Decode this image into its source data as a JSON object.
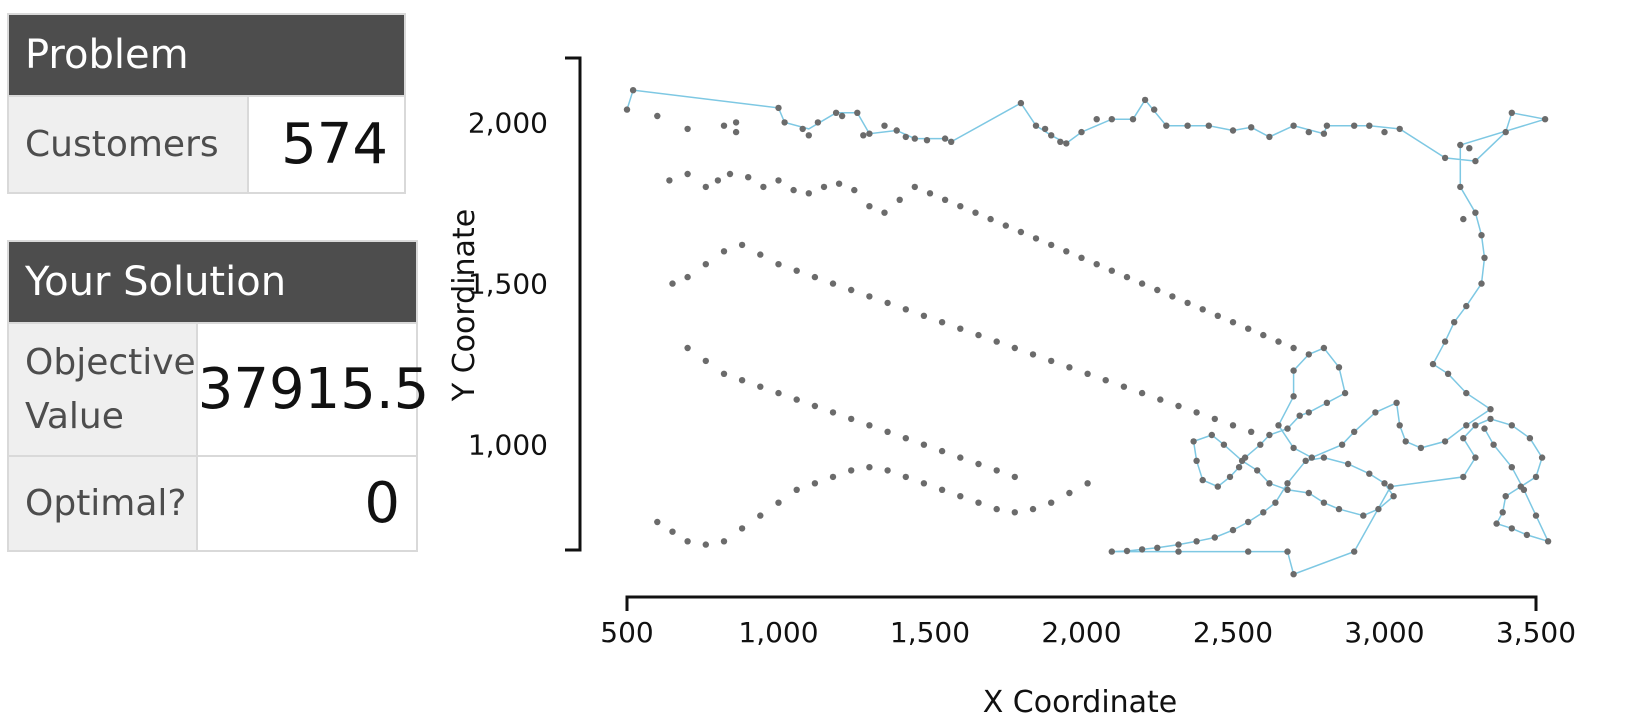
{
  "problem": {
    "title": "Problem",
    "customers_label": "Customers",
    "customers_value": "574"
  },
  "solution": {
    "title": "Your Solution",
    "objective_label": "Objective Value",
    "objective_value": "37915.5",
    "optimal_label": "Optimal?",
    "optimal_value": "0"
  },
  "colors": {
    "header_bg": "#4d4d4d",
    "label_bg": "#efefef",
    "route_line": "#7ec8e3",
    "point": "#6b6b6b"
  },
  "chart_data": {
    "type": "line",
    "xlabel": "X Coordinate",
    "ylabel": "Y Coordinate",
    "xlim": [
      500,
      3500
    ],
    "ylim": [
      580,
      2200
    ],
    "x_ticks": [
      500,
      1000,
      1500,
      2000,
      2500,
      3000,
      3500
    ],
    "x_tick_labels": [
      "500",
      "1,000",
      "1,500",
      "2,000",
      "2,500",
      "3,000",
      "3,500"
    ],
    "y_ticks": [
      1000,
      1500,
      2000
    ],
    "y_tick_labels": [
      "1,000",
      "1,500",
      "2,000"
    ],
    "grid": false,
    "route": [
      [
        500,
        2040
      ],
      [
        520,
        2100
      ],
      [
        1000,
        2045
      ],
      [
        1020,
        2000
      ],
      [
        1100,
        1980
      ],
      [
        1190,
        2030
      ],
      [
        1260,
        2030
      ],
      [
        1300,
        1965
      ],
      [
        1390,
        1975
      ],
      [
        1450,
        1950
      ],
      [
        1550,
        1950
      ],
      [
        1570,
        1940
      ],
      [
        1800,
        2060
      ],
      [
        1850,
        1990
      ],
      [
        1900,
        1960
      ],
      [
        1950,
        1935
      ],
      [
        2000,
        1970
      ],
      [
        2100,
        2010
      ],
      [
        2170,
        2010
      ],
      [
        2210,
        2070
      ],
      [
        2280,
        1990
      ],
      [
        2420,
        1990
      ],
      [
        2500,
        1975
      ],
      [
        2560,
        1985
      ],
      [
        2620,
        1955
      ],
      [
        2700,
        1990
      ],
      [
        2800,
        1965
      ],
      [
        2810,
        1990
      ],
      [
        2950,
        1990
      ],
      [
        3050,
        1980
      ],
      [
        3200,
        1890
      ],
      [
        3300,
        1880
      ],
      [
        3400,
        1970
      ],
      [
        3420,
        2030
      ],
      [
        3530,
        2010
      ],
      [
        3250,
        1930
      ],
      [
        3250,
        1800
      ],
      [
        3300,
        1720
      ],
      [
        3320,
        1650
      ],
      [
        3330,
        1580
      ],
      [
        3320,
        1500
      ],
      [
        3270,
        1430
      ],
      [
        3230,
        1380
      ],
      [
        3200,
        1320
      ],
      [
        3160,
        1250
      ],
      [
        3210,
        1220
      ],
      [
        3270,
        1160
      ],
      [
        3350,
        1110
      ],
      [
        3270,
        1060
      ],
      [
        3200,
        1010
      ],
      [
        3120,
        990
      ],
      [
        3070,
        1010
      ],
      [
        3050,
        1060
      ],
      [
        3040,
        1130
      ],
      [
        2970,
        1100
      ],
      [
        2900,
        1040
      ],
      [
        2860,
        1000
      ],
      [
        2760,
        960
      ],
      [
        2700,
        990
      ],
      [
        2650,
        1060
      ],
      [
        2700,
        1150
      ],
      [
        2700,
        1230
      ],
      [
        2750,
        1280
      ],
      [
        2800,
        1300
      ],
      [
        2850,
        1240
      ],
      [
        2870,
        1160
      ],
      [
        2810,
        1130
      ],
      [
        2750,
        1100
      ],
      [
        2720,
        1090
      ],
      [
        2680,
        1050
      ],
      [
        2620,
        1030
      ],
      [
        2590,
        1000
      ],
      [
        2540,
        960
      ],
      [
        2520,
        930
      ],
      [
        2490,
        900
      ],
      [
        2450,
        870
      ],
      [
        2400,
        890
      ],
      [
        2380,
        950
      ],
      [
        2370,
        1010
      ],
      [
        2430,
        1030
      ],
      [
        2470,
        1000
      ],
      [
        2530,
        950
      ],
      [
        2580,
        920
      ],
      [
        2620,
        880
      ],
      [
        2680,
        860
      ],
      [
        2750,
        850
      ],
      [
        2800,
        820
      ],
      [
        2850,
        800
      ],
      [
        2930,
        780
      ],
      [
        2980,
        800
      ],
      [
        3030,
        840
      ],
      [
        3000,
        880
      ],
      [
        2950,
        910
      ],
      [
        2880,
        940
      ],
      [
        2800,
        960
      ],
      [
        2740,
        950
      ],
      [
        2680,
        880
      ],
      [
        2640,
        820
      ],
      [
        2600,
        790
      ],
      [
        2550,
        760
      ],
      [
        2500,
        735
      ],
      [
        2440,
        712
      ],
      [
        2380,
        700
      ],
      [
        2320,
        690
      ],
      [
        2250,
        680
      ],
      [
        2200,
        675
      ],
      [
        2150,
        670
      ],
      [
        2100,
        668
      ],
      [
        2320,
        668
      ],
      [
        2550,
        668
      ],
      [
        2680,
        668
      ],
      [
        2700,
        598
      ],
      [
        2900,
        668
      ],
      [
        3020,
        870
      ],
      [
        3260,
        900
      ],
      [
        3300,
        960
      ],
      [
        3260,
        1020
      ],
      [
        3300,
        1060
      ],
      [
        3350,
        1080
      ],
      [
        3420,
        1060
      ],
      [
        3480,
        1020
      ],
      [
        3520,
        960
      ],
      [
        3500,
        900
      ],
      [
        3450,
        870
      ],
      [
        3400,
        840
      ],
      [
        3390,
        790
      ],
      [
        3370,
        755
      ],
      [
        3420,
        740
      ],
      [
        3470,
        720
      ],
      [
        3540,
        700
      ],
      [
        3500,
        780
      ],
      [
        3460,
        860
      ],
      [
        3420,
        930
      ],
      [
        3360,
        1000
      ],
      [
        3330,
        1050
      ]
    ],
    "points": [
      [
        500,
        2040
      ],
      [
        520,
        2100
      ],
      [
        600,
        2020
      ],
      [
        700,
        1980
      ],
      [
        820,
        1990
      ],
      [
        860,
        1970
      ],
      [
        860,
        2000
      ],
      [
        1000,
        2045
      ],
      [
        1020,
        2000
      ],
      [
        1080,
        1980
      ],
      [
        1100,
        1960
      ],
      [
        1130,
        2000
      ],
      [
        1190,
        2030
      ],
      [
        1210,
        2020
      ],
      [
        1260,
        2030
      ],
      [
        1280,
        1960
      ],
      [
        1300,
        1965
      ],
      [
        1350,
        1990
      ],
      [
        1390,
        1975
      ],
      [
        1420,
        1955
      ],
      [
        1450,
        1950
      ],
      [
        1490,
        1945
      ],
      [
        1550,
        1950
      ],
      [
        1570,
        1940
      ],
      [
        1800,
        2060
      ],
      [
        1850,
        1990
      ],
      [
        1880,
        1980
      ],
      [
        1900,
        1960
      ],
      [
        1930,
        1940
      ],
      [
        1950,
        1935
      ],
      [
        2000,
        1970
      ],
      [
        2050,
        2010
      ],
      [
        2100,
        2010
      ],
      [
        2170,
        2010
      ],
      [
        2210,
        2070
      ],
      [
        2240,
        2040
      ],
      [
        2280,
        1990
      ],
      [
        2350,
        1990
      ],
      [
        2420,
        1990
      ],
      [
        2500,
        1975
      ],
      [
        2560,
        1985
      ],
      [
        2620,
        1955
      ],
      [
        2700,
        1990
      ],
      [
        2750,
        1970
      ],
      [
        2800,
        1965
      ],
      [
        2810,
        1990
      ],
      [
        2900,
        1990
      ],
      [
        2950,
        1990
      ],
      [
        3000,
        1970
      ],
      [
        3050,
        1980
      ],
      [
        3200,
        1890
      ],
      [
        3250,
        1930
      ],
      [
        3280,
        1920
      ],
      [
        3300,
        1880
      ],
      [
        3400,
        1970
      ],
      [
        3420,
        2030
      ],
      [
        3530,
        2010
      ],
      [
        3250,
        1800
      ],
      [
        3260,
        1700
      ],
      [
        3300,
        1720
      ],
      [
        3320,
        1650
      ],
      [
        3330,
        1580
      ],
      [
        3320,
        1500
      ],
      [
        3270,
        1430
      ],
      [
        3230,
        1380
      ],
      [
        3200,
        1320
      ],
      [
        3160,
        1250
      ],
      [
        3210,
        1220
      ],
      [
        3270,
        1160
      ],
      [
        3350,
        1110
      ],
      [
        3270,
        1060
      ],
      [
        3200,
        1010
      ],
      [
        3120,
        990
      ],
      [
        3070,
        1010
      ],
      [
        3050,
        1060
      ],
      [
        3040,
        1130
      ],
      [
        2970,
        1100
      ],
      [
        2900,
        1040
      ],
      [
        2860,
        1000
      ],
      [
        2760,
        960
      ],
      [
        2700,
        990
      ],
      [
        2650,
        1060
      ],
      [
        2700,
        1150
      ],
      [
        2700,
        1230
      ],
      [
        2750,
        1280
      ],
      [
        2800,
        1300
      ],
      [
        2850,
        1240
      ],
      [
        2870,
        1160
      ],
      [
        2810,
        1130
      ],
      [
        2750,
        1100
      ],
      [
        2720,
        1090
      ],
      [
        2680,
        1050
      ],
      [
        2620,
        1030
      ],
      [
        2590,
        1000
      ],
      [
        2540,
        960
      ],
      [
        2520,
        930
      ],
      [
        2490,
        900
      ],
      [
        2450,
        870
      ],
      [
        2400,
        890
      ],
      [
        2380,
        950
      ],
      [
        2370,
        1010
      ],
      [
        2430,
        1030
      ],
      [
        2470,
        1000
      ],
      [
        2530,
        950
      ],
      [
        2580,
        920
      ],
      [
        2620,
        880
      ],
      [
        2680,
        860
      ],
      [
        2750,
        850
      ],
      [
        2800,
        820
      ],
      [
        2850,
        800
      ],
      [
        2930,
        780
      ],
      [
        2980,
        800
      ],
      [
        3030,
        840
      ],
      [
        3000,
        880
      ],
      [
        2950,
        910
      ],
      [
        2880,
        940
      ],
      [
        2800,
        960
      ],
      [
        2740,
        950
      ],
      [
        2680,
        880
      ],
      [
        2640,
        820
      ],
      [
        2600,
        790
      ],
      [
        2550,
        760
      ],
      [
        2500,
        735
      ],
      [
        2440,
        712
      ],
      [
        2380,
        700
      ],
      [
        2320,
        690
      ],
      [
        2250,
        680
      ],
      [
        2200,
        675
      ],
      [
        2150,
        670
      ],
      [
        2100,
        668
      ],
      [
        2320,
        668
      ],
      [
        2550,
        668
      ],
      [
        2680,
        668
      ],
      [
        2700,
        598
      ],
      [
        2900,
        668
      ],
      [
        3020,
        870
      ],
      [
        3260,
        900
      ],
      [
        3300,
        960
      ],
      [
        3260,
        1020
      ],
      [
        3300,
        1060
      ],
      [
        3350,
        1080
      ],
      [
        3420,
        1060
      ],
      [
        3480,
        1020
      ],
      [
        3520,
        960
      ],
      [
        3500,
        900
      ],
      [
        3450,
        870
      ],
      [
        3400,
        840
      ],
      [
        3390,
        790
      ],
      [
        3370,
        755
      ],
      [
        3420,
        740
      ],
      [
        3470,
        720
      ],
      [
        3540,
        700
      ],
      [
        3500,
        780
      ],
      [
        3460,
        860
      ],
      [
        3420,
        930
      ],
      [
        3360,
        1000
      ],
      [
        3330,
        1050
      ],
      [
        640,
        1820
      ],
      [
        700,
        1840
      ],
      [
        760,
        1800
      ],
      [
        800,
        1820
      ],
      [
        840,
        1840
      ],
      [
        900,
        1830
      ],
      [
        950,
        1800
      ],
      [
        1000,
        1820
      ],
      [
        1050,
        1790
      ],
      [
        1100,
        1780
      ],
      [
        1150,
        1800
      ],
      [
        1200,
        1810
      ],
      [
        1250,
        1790
      ],
      [
        1300,
        1740
      ],
      [
        1350,
        1720
      ],
      [
        1400,
        1760
      ],
      [
        1450,
        1800
      ],
      [
        1500,
        1780
      ],
      [
        1550,
        1760
      ],
      [
        1600,
        1740
      ],
      [
        1650,
        1720
      ],
      [
        1700,
        1700
      ],
      [
        1750,
        1680
      ],
      [
        1800,
        1660
      ],
      [
        1850,
        1640
      ],
      [
        1900,
        1620
      ],
      [
        1950,
        1600
      ],
      [
        2000,
        1580
      ],
      [
        2050,
        1560
      ],
      [
        2100,
        1540
      ],
      [
        2150,
        1520
      ],
      [
        2200,
        1500
      ],
      [
        2250,
        1480
      ],
      [
        2300,
        1460
      ],
      [
        2350,
        1440
      ],
      [
        2400,
        1420
      ],
      [
        2450,
        1400
      ],
      [
        2500,
        1380
      ],
      [
        2550,
        1360
      ],
      [
        2600,
        1340
      ],
      [
        2650,
        1320
      ],
      [
        2700,
        1300
      ],
      [
        650,
        1500
      ],
      [
        700,
        1520
      ],
      [
        760,
        1560
      ],
      [
        820,
        1600
      ],
      [
        880,
        1620
      ],
      [
        940,
        1590
      ],
      [
        1000,
        1560
      ],
      [
        1060,
        1540
      ],
      [
        1120,
        1520
      ],
      [
        1180,
        1500
      ],
      [
        1240,
        1480
      ],
      [
        1300,
        1460
      ],
      [
        1360,
        1440
      ],
      [
        1420,
        1420
      ],
      [
        1480,
        1400
      ],
      [
        1540,
        1380
      ],
      [
        1600,
        1360
      ],
      [
        1660,
        1340
      ],
      [
        1720,
        1320
      ],
      [
        1780,
        1300
      ],
      [
        1840,
        1280
      ],
      [
        1900,
        1260
      ],
      [
        1960,
        1240
      ],
      [
        2020,
        1220
      ],
      [
        2080,
        1200
      ],
      [
        2140,
        1180
      ],
      [
        2200,
        1160
      ],
      [
        2260,
        1140
      ],
      [
        2320,
        1120
      ],
      [
        2380,
        1100
      ],
      [
        2440,
        1080
      ],
      [
        2500,
        1060
      ],
      [
        2560,
        1040
      ],
      [
        600,
        760
      ],
      [
        650,
        730
      ],
      [
        700,
        700
      ],
      [
        760,
        690
      ],
      [
        820,
        700
      ],
      [
        880,
        740
      ],
      [
        940,
        780
      ],
      [
        1000,
        820
      ],
      [
        1060,
        860
      ],
      [
        1120,
        880
      ],
      [
        1180,
        900
      ],
      [
        1240,
        920
      ],
      [
        1300,
        930
      ],
      [
        1360,
        920
      ],
      [
        1420,
        900
      ],
      [
        1480,
        880
      ],
      [
        1540,
        860
      ],
      [
        1600,
        840
      ],
      [
        1660,
        820
      ],
      [
        1720,
        800
      ],
      [
        1780,
        790
      ],
      [
        1840,
        800
      ],
      [
        1900,
        820
      ],
      [
        1960,
        850
      ],
      [
        2020,
        880
      ],
      [
        700,
        1300
      ],
      [
        760,
        1260
      ],
      [
        820,
        1220
      ],
      [
        880,
        1200
      ],
      [
        940,
        1180
      ],
      [
        1000,
        1160
      ],
      [
        1060,
        1140
      ],
      [
        1120,
        1120
      ],
      [
        1180,
        1100
      ],
      [
        1240,
        1080
      ],
      [
        1300,
        1060
      ],
      [
        1360,
        1040
      ],
      [
        1420,
        1020
      ],
      [
        1480,
        1000
      ],
      [
        1540,
        980
      ],
      [
        1600,
        960
      ],
      [
        1660,
        940
      ],
      [
        1720,
        920
      ],
      [
        1780,
        900
      ]
    ]
  }
}
